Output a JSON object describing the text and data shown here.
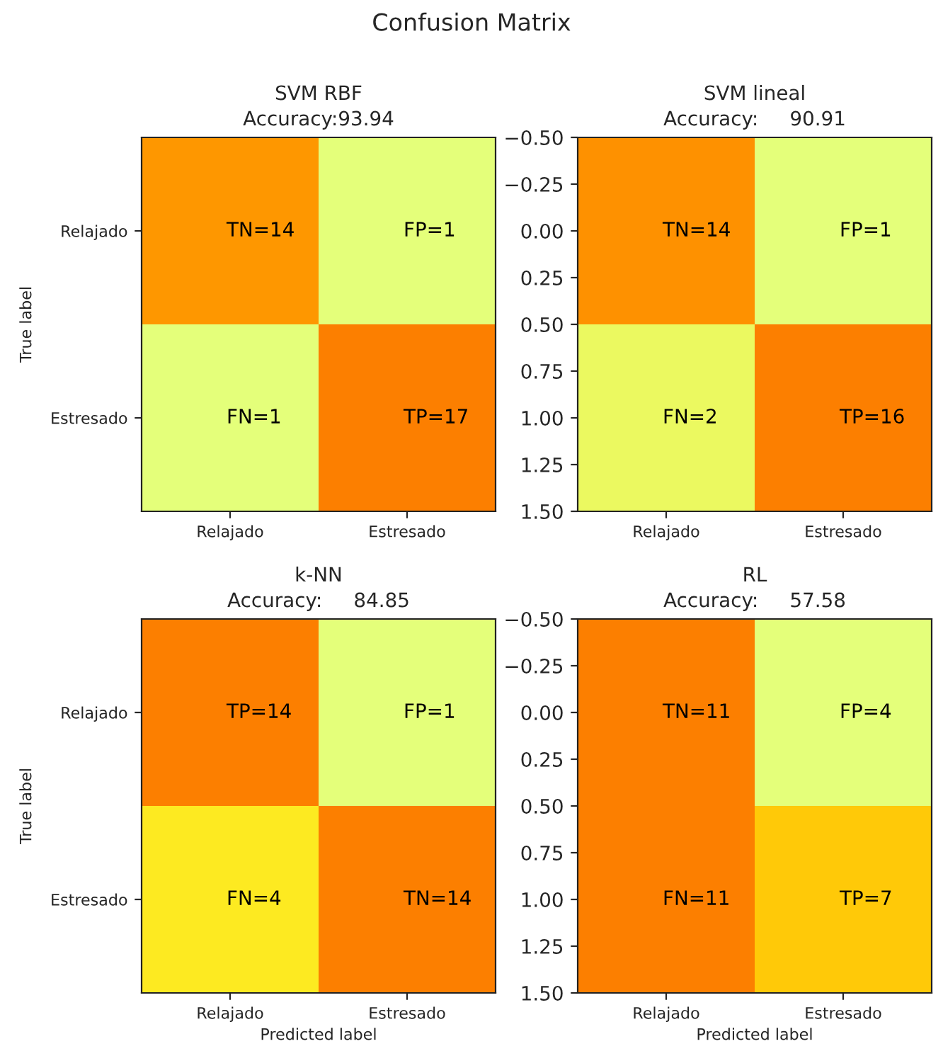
{
  "chart_data": [
    {
      "type": "other",
      "title": "Confusion Matrix"
    },
    {
      "type": "heatmap",
      "title": "SVM RBF",
      "subtitle": "Accuracy:93.94",
      "ylabel": "True label",
      "categories": [
        "Relajado",
        "Estresado"
      ],
      "y_categories": [
        "Relajado",
        "Estresado"
      ],
      "cells": [
        [
          14,
          1
        ],
        [
          1,
          17
        ]
      ],
      "cell_labels": [
        [
          "TN=14",
          "FP=1"
        ],
        [
          "FN=1",
          "TP=17"
        ]
      ]
    },
    {
      "type": "heatmap",
      "title": "SVM lineal",
      "subtitle": "Accuracy:     90.91",
      "categories": [
        "Relajado",
        "Estresado"
      ],
      "ylim": [
        1.5,
        -0.5
      ],
      "yticks": [
        {
          "value": -0.5,
          "label": "−0.50"
        },
        {
          "value": -0.25,
          "label": "−0.25"
        },
        {
          "value": 0,
          "label": "0.00"
        },
        {
          "value": 0.25,
          "label": "0.25"
        },
        {
          "value": 0.5,
          "label": "0.50"
        },
        {
          "value": 0.75,
          "label": "0.75"
        },
        {
          "value": 1,
          "label": "1.00"
        },
        {
          "value": 1.25,
          "label": "1.25"
        },
        {
          "value": 1.5,
          "label": "1.50"
        }
      ],
      "cells": [
        [
          14,
          1
        ],
        [
          2,
          16
        ]
      ],
      "cell_labels": [
        [
          "TN=14",
          "FP=1"
        ],
        [
          "FN=2",
          "TP=16"
        ]
      ]
    },
    {
      "type": "heatmap",
      "title": "k-NN",
      "subtitle": "Accuracy:     84.85",
      "xlabel": "Predicted label",
      "ylabel": "True label",
      "categories": [
        "Relajado",
        "Estresado"
      ],
      "y_categories": [
        "Relajado",
        "Estresado"
      ],
      "cells": [
        [
          14,
          1
        ],
        [
          4,
          14
        ]
      ],
      "cell_labels": [
        [
          "TP=14",
          "FP=1"
        ],
        [
          "FN=4",
          "TN=14"
        ]
      ]
    },
    {
      "type": "heatmap",
      "title": "RL",
      "subtitle": "Accuracy:     57.58",
      "xlabel": "Predicted label",
      "categories": [
        "Relajado",
        "Estresado"
      ],
      "ylim": [
        1.5,
        -0.5
      ],
      "yticks": [
        {
          "value": -0.5,
          "label": "−0.50"
        },
        {
          "value": -0.25,
          "label": "−0.25"
        },
        {
          "value": 0,
          "label": "0.00"
        },
        {
          "value": 0.25,
          "label": "0.25"
        },
        {
          "value": 0.5,
          "label": "0.50"
        },
        {
          "value": 0.75,
          "label": "0.75"
        },
        {
          "value": 1,
          "label": "1.00"
        },
        {
          "value": 1.25,
          "label": "1.25"
        },
        {
          "value": 1.5,
          "label": "1.50"
        }
      ],
      "cells": [
        [
          11,
          4
        ],
        [
          11,
          7
        ]
      ],
      "cell_labels": [
        [
          "TN=11",
          "FP=4"
        ],
        [
          "FN=11",
          "TP=7"
        ]
      ]
    }
  ]
}
